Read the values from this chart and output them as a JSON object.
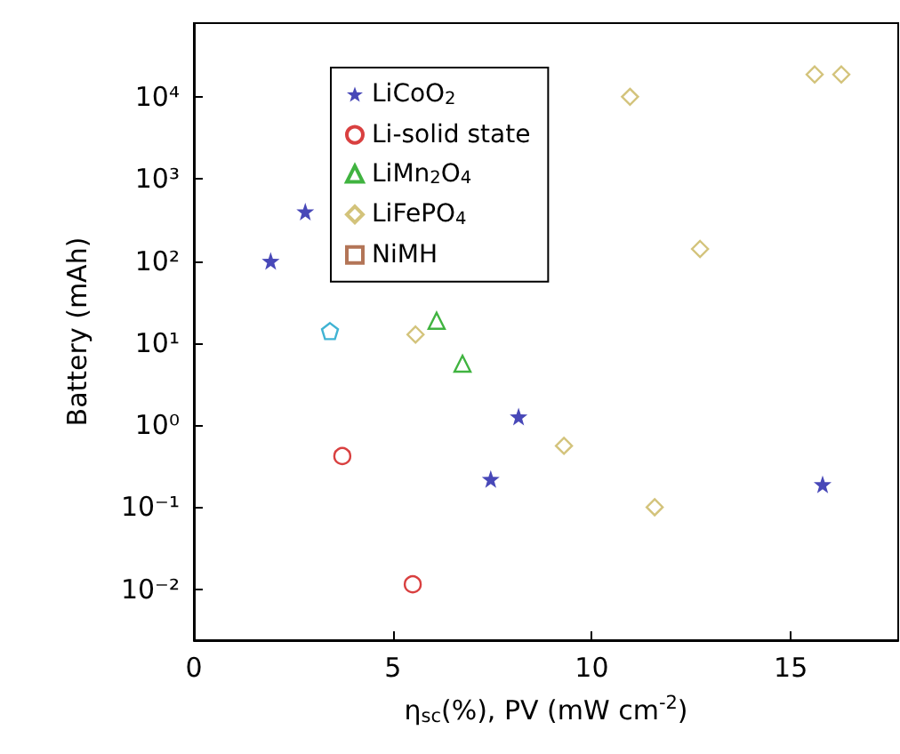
{
  "chart_data": {
    "type": "scatter",
    "xlabel": "η$_{sc}$(%), PV (mW cm$^{-2}$)",
    "ylabel": "Battery (mAh)",
    "log": "y",
    "xlim": [
      0,
      17.7
    ],
    "xticks": [
      0,
      5,
      10,
      15
    ],
    "ylim": [
      0.0024,
      79000
    ],
    "yticks": [
      {
        "value": 0.01,
        "label": "10⁻²"
      },
      {
        "value": 0.1,
        "label": "10⁻¹"
      },
      {
        "value": 1,
        "label": "10⁰"
      },
      {
        "value": 10,
        "label": "10¹"
      },
      {
        "value": 100,
        "label": "10²"
      },
      {
        "value": 1000,
        "label": "10³"
      },
      {
        "value": 10000,
        "label": "10⁴"
      }
    ],
    "grid": false,
    "legend": "top left",
    "series": [
      {
        "name": "LiCoO$_{2}$",
        "color": "#1a1aa6",
        "marker": "star",
        "x": [
          1.93,
          2.8,
          8.16,
          7.46,
          15.8
        ],
        "values": [
          100,
          400,
          1.27,
          0.22,
          0.19
        ]
      },
      {
        "name": "Li-solid state",
        "color": "#d01010",
        "marker": "circle",
        "x": [
          3.73,
          5.5
        ],
        "values": [
          0.42,
          0.0115
        ]
      },
      {
        "name": "LiMn$_{2}$O$_{4}$",
        "color": "#10a010",
        "marker": "triangle",
        "x": [
          6.1,
          6.75
        ],
        "values": [
          18.7,
          5.6
        ]
      },
      {
        "name": "LiFePO$_{4}$",
        "color": "#c8b45a",
        "marker": "diamond",
        "x": [
          10.96,
          5.57,
          9.3,
          11.58,
          12.72,
          15.6,
          16.27
        ],
        "values": [
          10000,
          12.7,
          0.56,
          0.1,
          140,
          18700,
          18700
        ]
      },
      {
        "name": "NiMH",
        "color": "#a0522d",
        "marker": "square"
      },
      {
        "color": "#10a0c8",
        "x": [
          3.42
        ],
        "values": [
          14
        ]
      }
    ]
  }
}
